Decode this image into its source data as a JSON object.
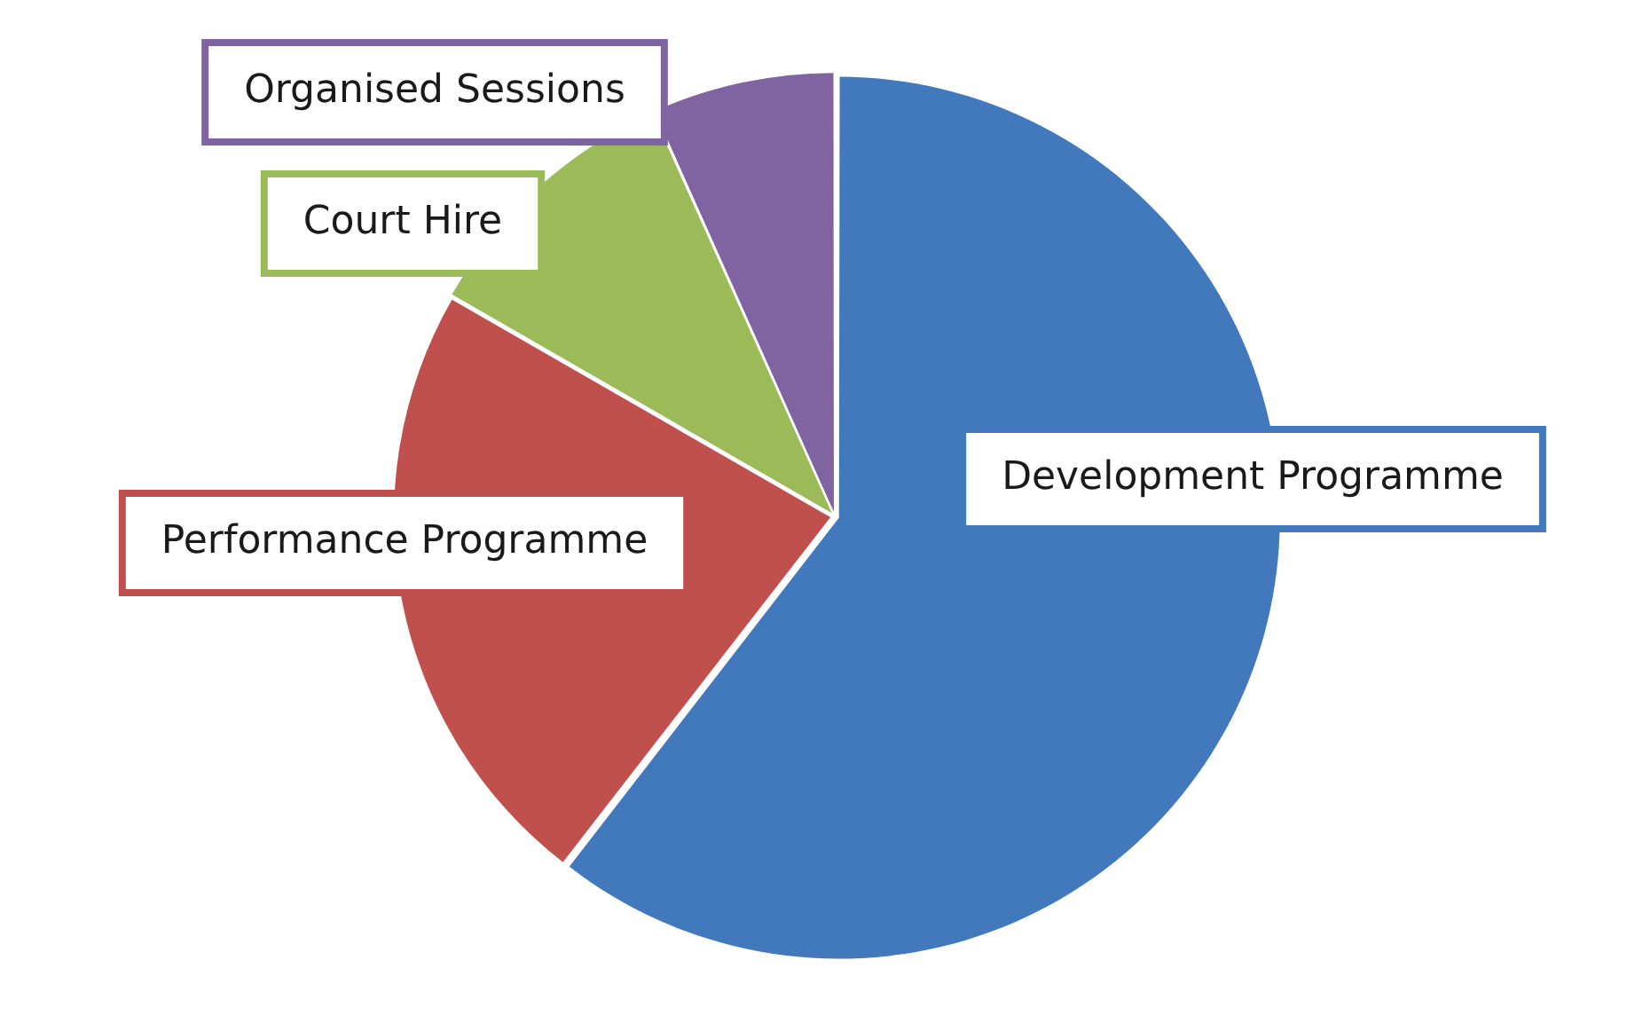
{
  "chart_data": {
    "type": "pie",
    "categories": [
      "Development Programme",
      "Performance Programme",
      "Court Hire",
      "Organised Sessions"
    ],
    "values": [
      60.5,
      22.8,
      10,
      6.7
    ],
    "colors": [
      "#4279bd",
      "#c0504d",
      "#9bbb59",
      "#8064a2"
    ],
    "legend": false
  }
}
